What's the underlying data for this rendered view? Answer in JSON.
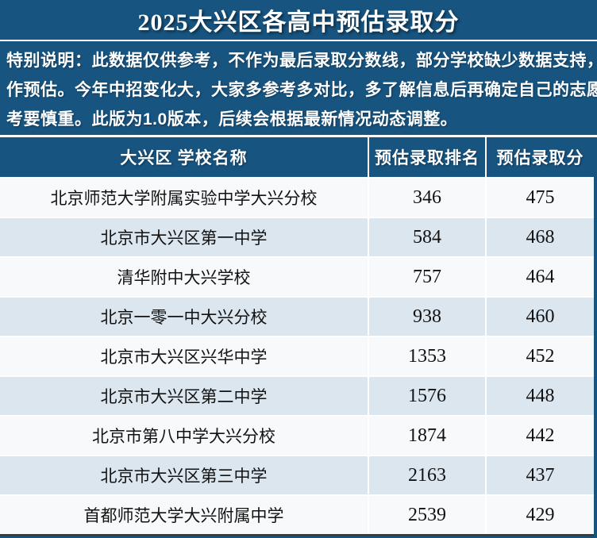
{
  "title": "2025大兴区各高中预估录取分",
  "notice": {
    "full": "特别说明：此数据仅供参考，不作为最后录取分数线，部分学校缺少数据支持，暂不作预估。今年中招变化大，大家多参考多对比，多了解信息后再确定自己的志愿，报考要慎重。此版为1.0版本，后续会根据最新情况动态调整。",
    "lines": [
      "特别说明：此数据仅供参考，不作为最后录取分数线，部分学校缺少数据支持，暂不",
      "作预估。今年中招变化大，大家多参考多对比，多了解信息后再确定自己的志愿，报",
      "考要慎重。此版为1.0版本，后续会根据最新情况动态调整。"
    ]
  },
  "table": {
    "columns": [
      "大兴区 学校名称",
      "预估录取排名",
      "预估录取分"
    ],
    "rows": [
      {
        "school": "北京师范大学附属实验中学大兴分校",
        "rank": "346",
        "score": "475"
      },
      {
        "school": "北京市大兴区第一中学",
        "rank": "584",
        "score": "468"
      },
      {
        "school": "清华附中大兴学校",
        "rank": "757",
        "score": "464"
      },
      {
        "school": "北京一零一中大兴分校",
        "rank": "938",
        "score": "460"
      },
      {
        "school": "北京市大兴区兴华中学",
        "rank": "1353",
        "score": "452"
      },
      {
        "school": "北京市大兴区第二中学",
        "rank": "1576",
        "score": "448"
      },
      {
        "school": "北京市第八中学大兴分校",
        "rank": "1874",
        "score": "442"
      },
      {
        "school": "北京市大兴区第三中学",
        "rank": "2163",
        "score": "437"
      },
      {
        "school": "首都师范大学大兴附属中学",
        "rank": "2539",
        "score": "429"
      }
    ]
  },
  "chart_data": {
    "type": "table",
    "title": "2025大兴区各高中预估录取分",
    "columns": [
      "大兴区 学校名称",
      "预估录取排名",
      "预估录取分"
    ],
    "rows": [
      [
        "北京师范大学附属实验中学大兴分校",
        346,
        475
      ],
      [
        "北京市大兴区第一中学",
        584,
        468
      ],
      [
        "清华附中大兴学校",
        757,
        464
      ],
      [
        "北京一零一中大兴分校",
        938,
        460
      ],
      [
        "北京市大兴区兴华中学",
        1353,
        452
      ],
      [
        "北京市大兴区第二中学",
        1576,
        448
      ],
      [
        "北京市第八中学大兴分校",
        1874,
        442
      ],
      [
        "北京市大兴区第三中学",
        2163,
        437
      ],
      [
        "首都师范大学大兴附属中学",
        2539,
        429
      ]
    ]
  },
  "colors": {
    "primary_blue": "#175480",
    "row_light": "#f7f9fb",
    "row_alt": "#dbe6ef",
    "divider_white": "#ffffff",
    "text_dark": "#121212",
    "bottom_line": "#3c3c3c"
  }
}
